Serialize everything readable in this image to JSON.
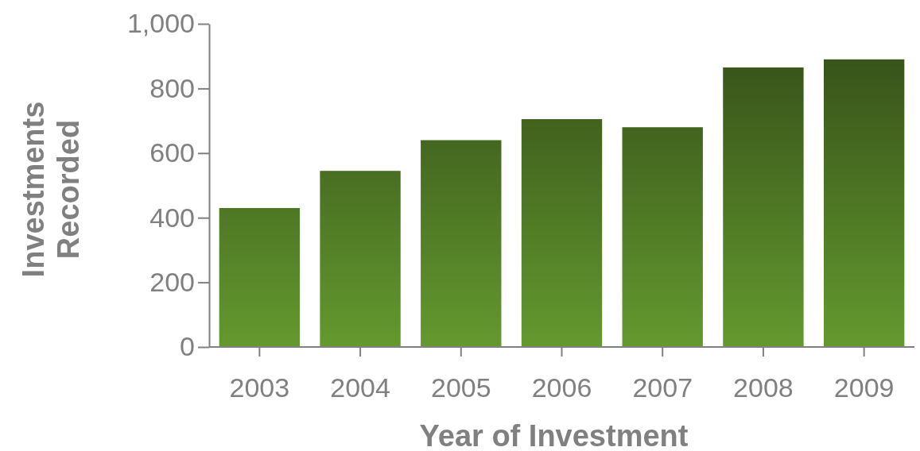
{
  "chart_data": {
    "type": "bar",
    "xlabel": "Year of Investment",
    "ylabel": "Investments Recorded",
    "categories": [
      "2003",
      "2004",
      "2005",
      "2006",
      "2007",
      "2008",
      "2009"
    ],
    "values": [
      430,
      545,
      640,
      705,
      680,
      865,
      890
    ],
    "color": "#64992f",
    "ylim": [
      0,
      1000
    ],
    "yticks": [
      0,
      200,
      400,
      600,
      800,
      {
        "value": 1000,
        "label": "1,000"
      }
    ],
    "grid": false
  }
}
